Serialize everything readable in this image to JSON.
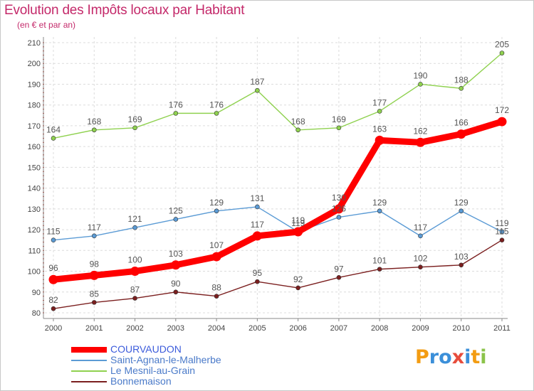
{
  "title": "Evolution des Impôts locaux par Habitant",
  "subtitle": "(en € et par an)",
  "logo": {
    "text": "Proxiti",
    "letters": [
      "P",
      "r",
      "o",
      "x",
      "i",
      "t",
      "i"
    ],
    "colors": [
      "#f39c12",
      "#3b8fd9",
      "#3b8fd9",
      "#e74c3c",
      "#3b8fd9",
      "#f39c12",
      "#8bc34a"
    ]
  },
  "chart_data": {
    "type": "line",
    "x": [
      "2000",
      "2001",
      "2002",
      "2003",
      "2004",
      "2005",
      "2006",
      "2007",
      "2008",
      "2009",
      "2010",
      "2011"
    ],
    "ylim": [
      80,
      210
    ],
    "yticks": [
      80,
      90,
      100,
      110,
      120,
      130,
      140,
      150,
      160,
      170,
      180,
      190,
      200,
      210
    ],
    "grid": true,
    "legend_position": "bottom-left",
    "series": [
      {
        "name": "COURVAUDON",
        "color": "#ff0000",
        "emphasis": true,
        "values": [
          96,
          98,
          100,
          103,
          107,
          117,
          119,
          130,
          163,
          162,
          166,
          172
        ]
      },
      {
        "name": "Saint-Agnan-le-Malherbe",
        "color": "#5b9bd5",
        "emphasis": false,
        "values": [
          115,
          117,
          121,
          125,
          129,
          131,
          119,
          126,
          129,
          117,
          129,
          119
        ]
      },
      {
        "name": "Le Mesnil-au-Grain",
        "color": "#8fd14f",
        "emphasis": false,
        "values": [
          164,
          168,
          169,
          176,
          176,
          187,
          168,
          169,
          177,
          190,
          188,
          205
        ]
      },
      {
        "name": "Bonnemaison",
        "color": "#7b1f1f",
        "emphasis": false,
        "values": [
          82,
          85,
          87,
          90,
          88,
          95,
          92,
          97,
          101,
          102,
          103,
          115
        ]
      }
    ]
  }
}
